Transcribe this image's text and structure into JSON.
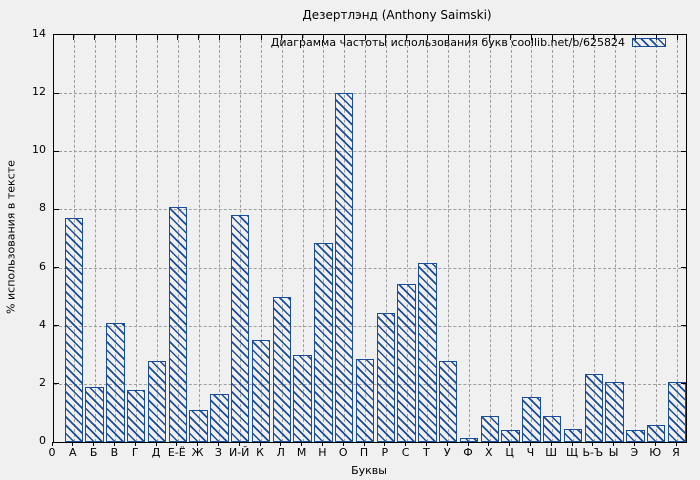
{
  "colors": {
    "background": "#f0f0f0",
    "bar_blue": "#1a4c9c",
    "grid_gray": "#9e9e9e",
    "axis_black": "#000000"
  },
  "chart_data": {
    "type": "bar",
    "title": "Дезертлэнд (Anthony Saimski)",
    "legend_label": "Диаграмма частоты использования букв coollib.net/b/625824",
    "legend_position": "top-right-inside",
    "xlabel": "Буквы",
    "ylabel": "% использования в тексте",
    "ylim": [
      0,
      14
    ],
    "yticks": [
      0,
      2,
      4,
      6,
      8,
      10,
      12,
      14
    ],
    "grid": true,
    "bar_style": "diagonal-hatch-outline",
    "categories": [
      "0",
      "А",
      "Б",
      "В",
      "Г",
      "Д",
      "Е-Ё",
      "Ж",
      "З",
      "И-Й",
      "К",
      "Л",
      "М",
      "Н",
      "О",
      "П",
      "Р",
      "С",
      "Т",
      "У",
      "Ф",
      "Х",
      "Ц",
      "Ч",
      "Ш",
      "Щ",
      "Ь-Ъ",
      "Ы",
      "Э",
      "Ю",
      "Я"
    ],
    "values": [
      0,
      7.7,
      1.9,
      4.1,
      1.8,
      2.8,
      8.1,
      1.1,
      1.65,
      7.8,
      3.5,
      5.0,
      3.0,
      6.85,
      12.0,
      2.85,
      4.45,
      5.45,
      6.15,
      2.8,
      0.15,
      0.9,
      0.4,
      1.55,
      0.9,
      0.45,
      2.35,
      2.05,
      0.4,
      0.6,
      2.05
    ]
  }
}
